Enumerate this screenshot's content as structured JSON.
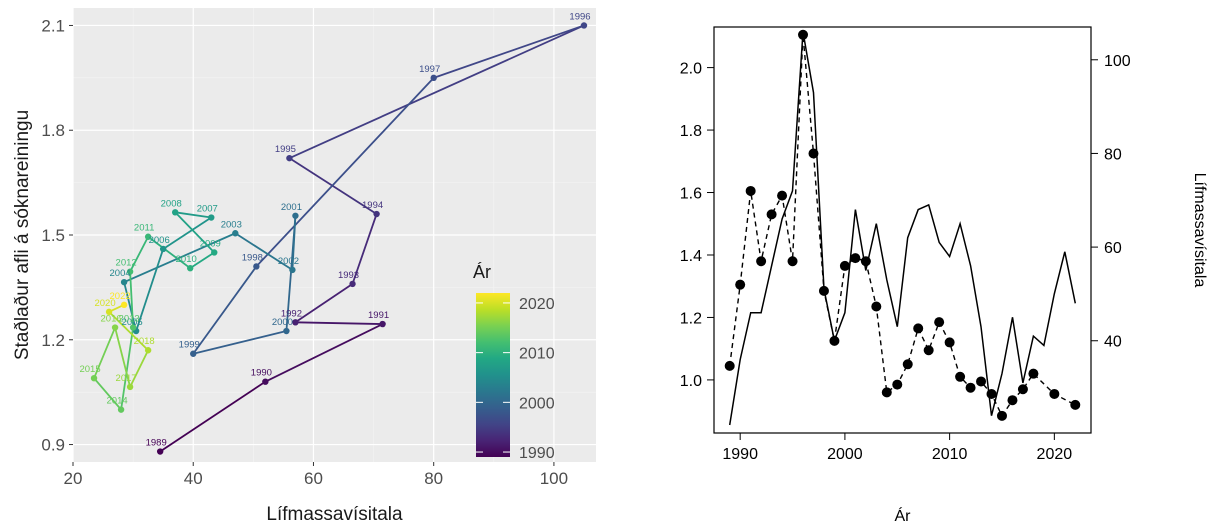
{
  "colors": {
    "panel_bg": "#ebebeb",
    "grid_major": "#ffffff",
    "axis_text": "#4d4d4d",
    "title_text": "#1a1a1a",
    "right_series": "#000000",
    "viridis": [
      "#440154",
      "#482475",
      "#414487",
      "#355f8d",
      "#2a788e",
      "#21918c",
      "#22a884",
      "#44bf70",
      "#7ad151",
      "#bddf26",
      "#fde725"
    ]
  },
  "chart_data": [
    {
      "type": "scatter",
      "connected_path": true,
      "xlabel": "Lífmassavísitala",
      "ylabel": "Staðlaður afli á sóknareiningu",
      "xlim": [
        20,
        107
      ],
      "ylim": [
        0.85,
        2.15
      ],
      "xticks": [
        20,
        40,
        60,
        80,
        100
      ],
      "yticks": [
        0.9,
        1.2,
        1.5,
        1.8,
        2.1
      ],
      "ytick_labels": [
        "0.9",
        "1.2",
        "1.5",
        "1.8",
        "2.1"
      ],
      "grid": true,
      "legend": {
        "title": "Ár",
        "type": "colorbar",
        "placement": "right",
        "range": [
          1989,
          2022
        ],
        "ticks": [
          1990,
          2000,
          2010,
          2020
        ]
      },
      "points": [
        {
          "year": 1989,
          "x": 34.5,
          "y": 0.88
        },
        {
          "year": 1990,
          "x": 52,
          "y": 1.08
        },
        {
          "year": 1991,
          "x": 71.5,
          "y": 1.245
        },
        {
          "year": 1992,
          "x": 57,
          "y": 1.25
        },
        {
          "year": 1993,
          "x": 66.5,
          "y": 1.36
        },
        {
          "year": 1994,
          "x": 70.5,
          "y": 1.56
        },
        {
          "year": 1995,
          "x": 56,
          "y": 1.72
        },
        {
          "year": 1996,
          "x": 105,
          "y": 2.1
        },
        {
          "year": 1997,
          "x": 80,
          "y": 1.95
        },
        {
          "year": 1998,
          "x": 50.5,
          "y": 1.41
        },
        {
          "year": 1999,
          "x": 40,
          "y": 1.16
        },
        {
          "year": 2000,
          "x": 55.5,
          "y": 1.225
        },
        {
          "year": 2001,
          "x": 57,
          "y": 1.555
        },
        {
          "year": 2002,
          "x": 56.5,
          "y": 1.4
        },
        {
          "year": 2003,
          "x": 47,
          "y": 1.505
        },
        {
          "year": 2004,
          "x": 28.5,
          "y": 1.365
        },
        {
          "year": 2005,
          "x": 30.5,
          "y": 1.225
        },
        {
          "year": 2006,
          "x": 35,
          "y": 1.46
        },
        {
          "year": 2007,
          "x": 43,
          "y": 1.55
        },
        {
          "year": 2008,
          "x": 37,
          "y": 1.565
        },
        {
          "year": 2009,
          "x": 43.5,
          "y": 1.45
        },
        {
          "year": 2010,
          "x": 39.5,
          "y": 1.405
        },
        {
          "year": 2011,
          "x": 32.5,
          "y": 1.495
        },
        {
          "year": 2012,
          "x": 29.5,
          "y": 1.395
        },
        {
          "year": 2013,
          "x": 30,
          "y": 1.235
        },
        {
          "year": 2014,
          "x": 28,
          "y": 1.0
        },
        {
          "year": 2015,
          "x": 23.5,
          "y": 1.09
        },
        {
          "year": 2016,
          "x": 27,
          "y": 1.235
        },
        {
          "year": 2017,
          "x": 29.5,
          "y": 1.065
        },
        {
          "year": 2018,
          "x": 32.5,
          "y": 1.17
        },
        {
          "year": 2020,
          "x": 26,
          "y": 1.28
        },
        {
          "year": 2022,
          "x": 28.5,
          "y": 1.3
        }
      ]
    },
    {
      "type": "line",
      "xlabel": "Ár",
      "ylabel_right": "Lífmassavísitala",
      "xlim": [
        1987.5,
        2023.5
      ],
      "ylim": [
        0.83,
        2.13
      ],
      "y2lim": [
        20.3,
        107
      ],
      "xticks": [
        1990,
        2000,
        2010,
        2020
      ],
      "yticks": [
        1.0,
        1.2,
        1.4,
        1.6,
        1.8,
        2.0
      ],
      "ytick_labels": [
        "1.0",
        "1.2",
        "1.4",
        "1.6",
        "1.8",
        "2.0"
      ],
      "y2ticks": [
        40,
        60,
        80,
        100
      ],
      "grid": false,
      "series": [
        {
          "style": "dashed-with-points",
          "axis": "left",
          "x": [
            1989,
            1990,
            1991,
            1992,
            1993,
            1994,
            1995,
            1996,
            1997,
            1998,
            1999,
            2000,
            2001,
            2002,
            2003,
            2004,
            2005,
            2006,
            2007,
            2008,
            2009,
            2010,
            2011,
            2012,
            2013,
            2014,
            2015,
            2016,
            2017,
            2018,
            2020,
            2022
          ],
          "values": [
            1.045,
            1.305,
            1.605,
            1.38,
            1.53,
            1.59,
            1.38,
            2.105,
            1.725,
            1.285,
            1.125,
            1.365,
            1.39,
            1.38,
            1.235,
            0.96,
            0.985,
            1.05,
            1.165,
            1.095,
            1.185,
            1.12,
            1.01,
            0.975,
            0.995,
            0.955,
            0.885,
            0.935,
            0.97,
            1.02,
            0.955,
            0.92
          ]
        },
        {
          "style": "solid",
          "axis": "right",
          "x": [
            1989,
            1990,
            1991,
            1992,
            1993,
            1994,
            1995,
            1996,
            1997,
            1998,
            1999,
            2000,
            2001,
            2002,
            2003,
            2004,
            2005,
            2006,
            2007,
            2008,
            2009,
            2010,
            2011,
            2012,
            2013,
            2014,
            2015,
            2016,
            2017,
            2018,
            2019,
            2020,
            2021,
            2022
          ],
          "values": [
            22,
            36,
            46,
            46,
            56,
            66,
            72,
            106,
            93,
            51,
            40,
            46,
            68,
            55,
            65,
            53,
            43,
            62,
            68,
            69,
            61,
            58,
            65,
            56,
            43,
            24,
            33,
            45,
            31,
            41,
            39,
            50,
            59,
            48
          ]
        }
      ]
    }
  ]
}
